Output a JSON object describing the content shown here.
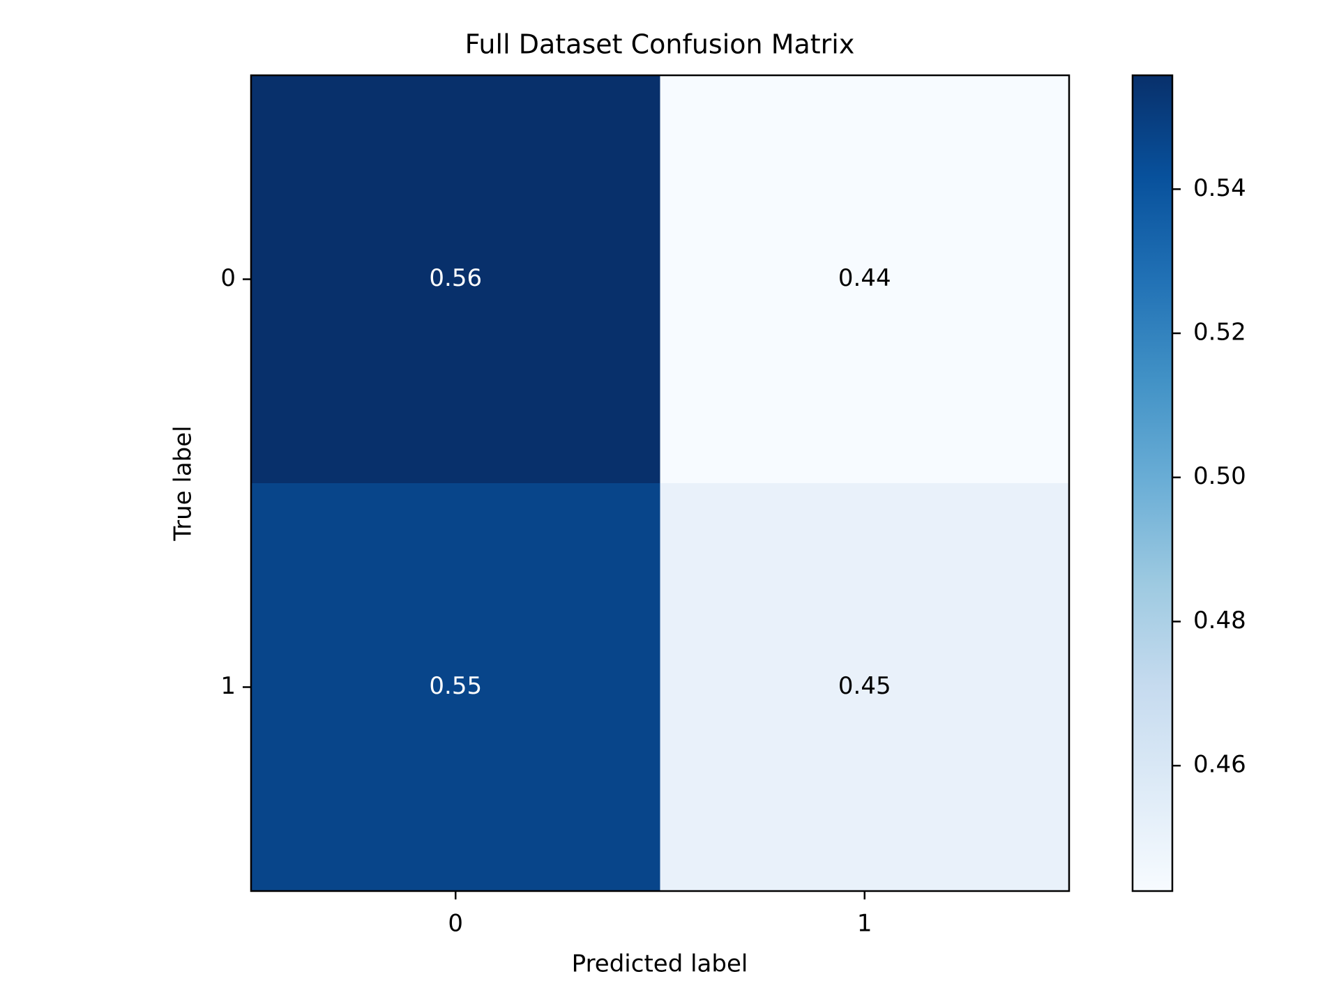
{
  "chart_data": {
    "type": "heatmap",
    "title": "Full Dataset Confusion Matrix",
    "xlabel": "Predicted label",
    "ylabel": "True label",
    "x_categories": [
      "0",
      "1"
    ],
    "y_categories": [
      "0",
      "1"
    ],
    "values": [
      [
        0.56,
        0.44
      ],
      [
        0.55,
        0.45
      ]
    ],
    "value_labels": [
      [
        "0.56",
        "0.44"
      ],
      [
        "0.55",
        "0.45"
      ]
    ],
    "colormap": "Blues",
    "cell_colors": [
      [
        "#08306b",
        "#f7fbff"
      ],
      [
        "#08458a",
        "#e9f1fa"
      ]
    ],
    "value_text_colors": [
      [
        "#ffffff",
        "#000000"
      ],
      [
        "#ffffff",
        "#000000"
      ]
    ],
    "colorbar": {
      "range": [
        0.4426,
        0.5558
      ],
      "ticks": [
        0.46,
        0.48,
        0.5,
        0.52,
        0.54
      ],
      "tick_labels": [
        "0.46",
        "0.48",
        "0.50",
        "0.52",
        "0.54"
      ]
    },
    "grid": false,
    "legend": "colorbar-right"
  }
}
